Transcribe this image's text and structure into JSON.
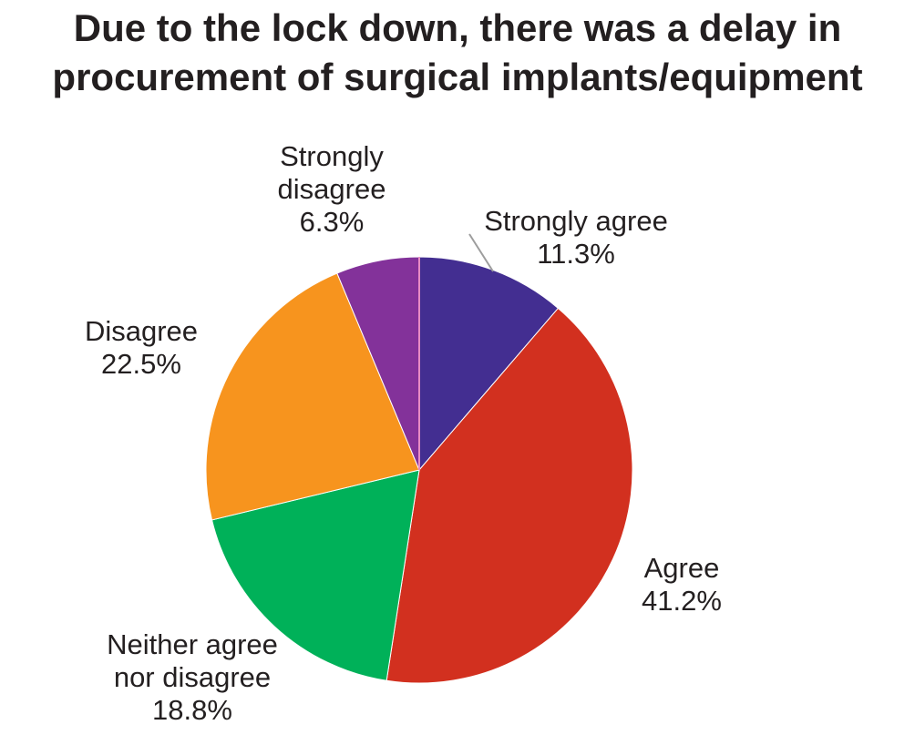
{
  "chart_data": {
    "type": "pie",
    "title_lines": [
      "Due to the lock down, there was a delay in",
      "procurement of surgical implants/equipment"
    ],
    "slices": [
      {
        "name": "Strongly agree",
        "label_lines": [
          "Strongly agree"
        ],
        "value": 11.3,
        "value_label": "11.3%",
        "color": "#432e91"
      },
      {
        "name": "Agree",
        "label_lines": [
          "Agree"
        ],
        "value": 41.2,
        "value_label": "41.2%",
        "color": "#d2301f"
      },
      {
        "name": "Neither agree nor disagree",
        "label_lines": [
          "Neither agree",
          "nor disagree"
        ],
        "value": 18.8,
        "value_label": "18.8%",
        "color": "#00b159"
      },
      {
        "name": "Disagree",
        "label_lines": [
          "Disagree"
        ],
        "value": 22.5,
        "value_label": "22.5%",
        "color": "#f7941e"
      },
      {
        "name": "Strongly disagree",
        "label_lines": [
          "Strongly",
          "disagree"
        ],
        "value": 6.3,
        "value_label": "6.3%",
        "color": "#83329a"
      }
    ],
    "start_angle": "12 o'clock",
    "direction": "clockwise",
    "legend": "none"
  }
}
